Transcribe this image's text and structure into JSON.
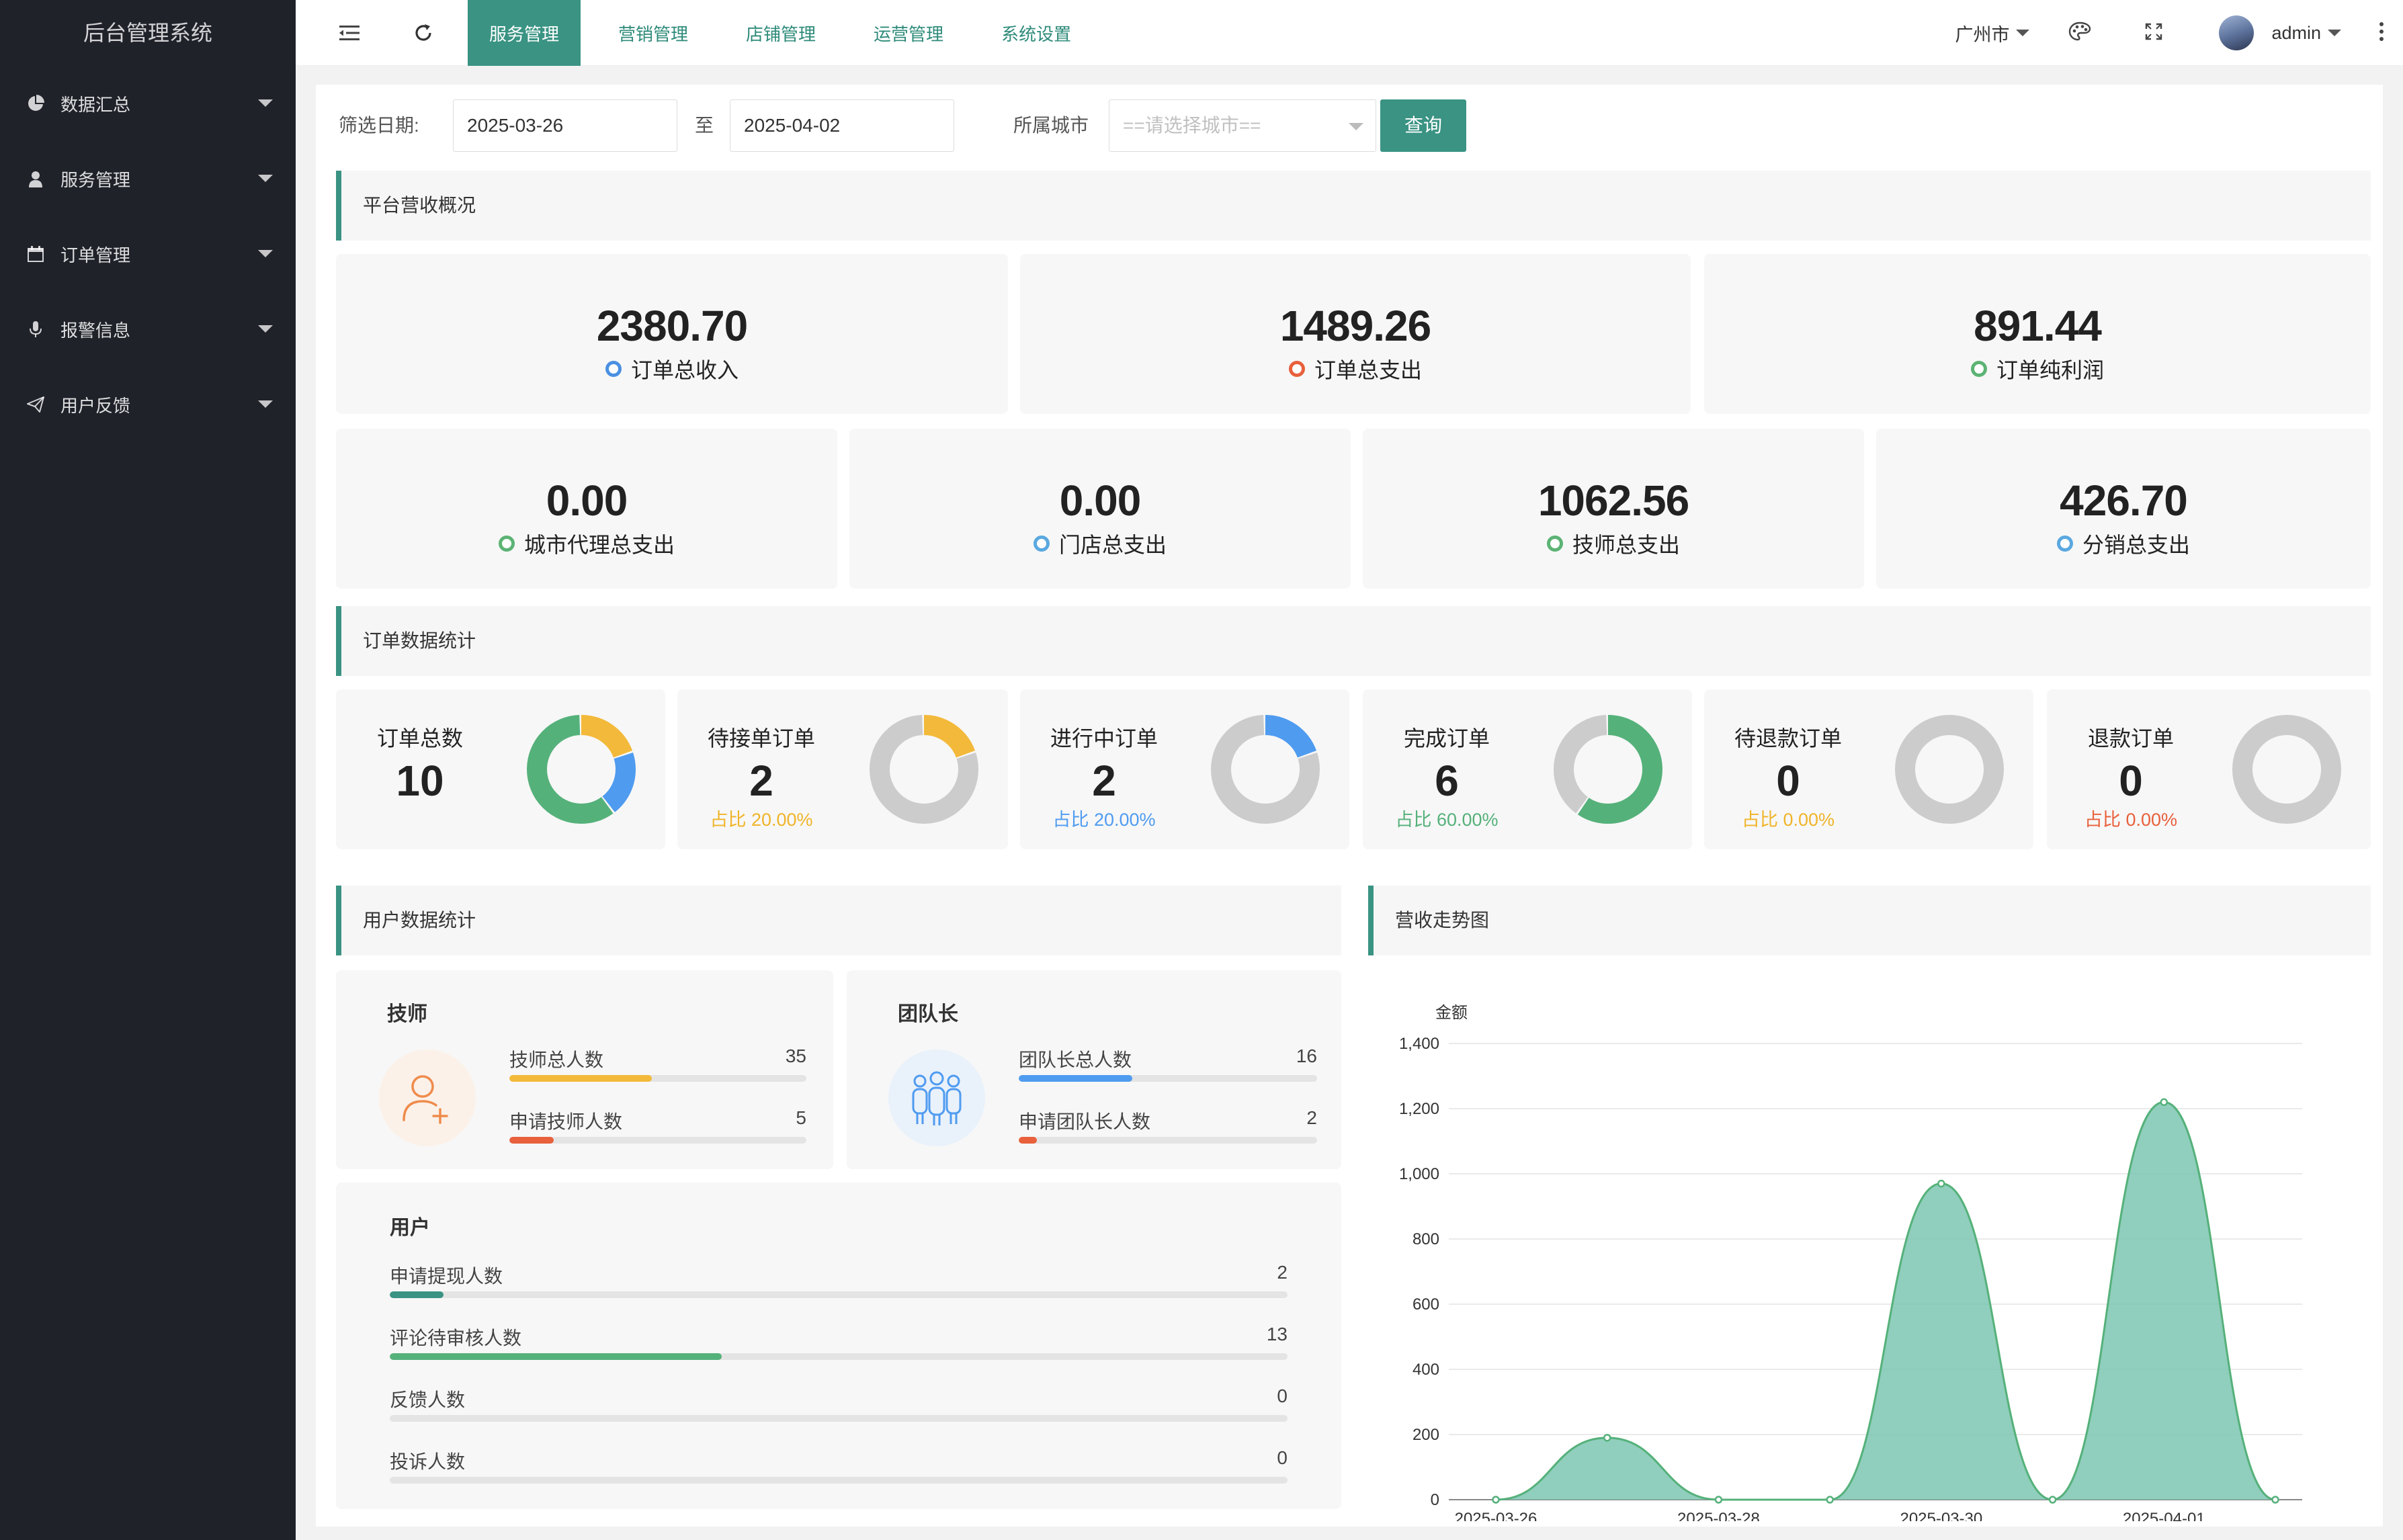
{
  "app": {
    "title": "后台管理系统"
  },
  "sidebar": {
    "items": [
      {
        "label": "数据汇总",
        "icon": "pie-chart-icon"
      },
      {
        "label": "服务管理",
        "icon": "user-icon"
      },
      {
        "label": "订单管理",
        "icon": "calendar-icon"
      },
      {
        "label": "报警信息",
        "icon": "microphone-icon"
      },
      {
        "label": "用户反馈",
        "icon": "paper-plane-icon"
      }
    ]
  },
  "header": {
    "tabs": [
      "服务管理",
      "营销管理",
      "店铺管理",
      "运营管理",
      "系统设置"
    ],
    "active_tab": "服务管理",
    "city": "广州市",
    "user": "admin"
  },
  "filter": {
    "date_label": "筛选日期:",
    "start_date": "2025-03-26",
    "to_label": "至",
    "end_date": "2025-04-02",
    "city_label": "所属城市",
    "city_placeholder": "==请选择城市==",
    "query_button": "查询"
  },
  "revenue": {
    "title": "平台营收概况",
    "top": [
      {
        "value": "2380.70",
        "label": "订单总收入",
        "dot_color": "#4a90e2"
      },
      {
        "value": "1489.26",
        "label": "订单总支出",
        "dot_color": "#e8603c"
      },
      {
        "value": "891.44",
        "label": "订单纯利润",
        "dot_color": "#5cb374"
      }
    ],
    "bottom": [
      {
        "value": "0.00",
        "label": "城市代理总支出",
        "dot_color": "#5cb374"
      },
      {
        "value": "0.00",
        "label": "门店总支出",
        "dot_color": "#5aa8e0"
      },
      {
        "value": "1062.56",
        "label": "技师总支出",
        "dot_color": "#5cb374"
      },
      {
        "value": "426.70",
        "label": "分销总支出",
        "dot_color": "#5aa8e0"
      }
    ]
  },
  "orders": {
    "title": "订单数据统计",
    "cards": [
      {
        "label": "订单总数",
        "count": "10",
        "ratio": "",
        "ratio_color": "#f0b429",
        "segments": [
          {
            "value": 2,
            "color": "#f3b93a"
          },
          {
            "value": 2,
            "color": "#4f9bf0"
          },
          {
            "value": 6,
            "color": "#55b17a"
          }
        ]
      },
      {
        "label": "待接单订单",
        "count": "2",
        "ratio": "占比 20.00%",
        "ratio_color": "#f0b429",
        "segments": [
          {
            "value": 2,
            "color": "#f3b93a"
          },
          {
            "value": 8,
            "color": "#cccccc"
          }
        ]
      },
      {
        "label": "进行中订单",
        "count": "2",
        "ratio": "占比 20.00%",
        "ratio_color": "#4f9bf0",
        "segments": [
          {
            "value": 2,
            "color": "#4f9bf0"
          },
          {
            "value": 8,
            "color": "#cccccc"
          }
        ]
      },
      {
        "label": "完成订单",
        "count": "6",
        "ratio": "占比 60.00%",
        "ratio_color": "#55b17a",
        "segments": [
          {
            "value": 6,
            "color": "#55b17a"
          },
          {
            "value": 4,
            "color": "#cccccc"
          }
        ]
      },
      {
        "label": "待退款订单",
        "count": "0",
        "ratio": "占比 0.00%",
        "ratio_color": "#f0b429",
        "segments": [
          {
            "value": 10,
            "color": "#cccccc"
          }
        ]
      },
      {
        "label": "退款订单",
        "count": "0",
        "ratio": "占比 0.00%",
        "ratio_color": "#e8603c",
        "segments": [
          {
            "value": 10,
            "color": "#cccccc"
          }
        ]
      }
    ]
  },
  "users": {
    "title": "用户数据统计",
    "technician": {
      "title": "技师",
      "rows": [
        {
          "label": "技师总人数",
          "value": "35",
          "ratio": 0.48,
          "color": "#f3b93a"
        },
        {
          "label": "申请技师人数",
          "value": "5",
          "ratio": 0.15,
          "color": "#e8603c"
        }
      ]
    },
    "leader": {
      "title": "团队长",
      "rows": [
        {
          "label": "团队长总人数",
          "value": "16",
          "ratio": 0.38,
          "color": "#4f9bf0"
        },
        {
          "label": "申请团队长人数",
          "value": "2",
          "ratio": 0.06,
          "color": "#e8603c"
        }
      ]
    },
    "user": {
      "title": "用户",
      "rows": [
        {
          "label": "申请提现人数",
          "value": "2",
          "ratio": 0.06,
          "color": "#3a9383"
        },
        {
          "label": "评论待审核人数",
          "value": "13",
          "ratio": 0.37,
          "color": "#55b17a"
        },
        {
          "label": "反馈人数",
          "value": "0",
          "ratio": 0,
          "color": "#55b17a"
        },
        {
          "label": "投诉人数",
          "value": "0",
          "ratio": 0,
          "color": "#55b17a"
        }
      ]
    }
  },
  "trend": {
    "title": "营收走势图"
  },
  "chart_data": {
    "type": "area",
    "ylabel": "金额",
    "x": [
      "2025-03-26",
      "2025-03-27",
      "2025-03-28",
      "2025-03-29",
      "2025-03-30",
      "2025-03-31",
      "2025-04-01",
      "2025-04-02"
    ],
    "x_tick_labels": [
      "2025-03-26",
      "2025-03-28",
      "2025-03-30",
      "2025-04-01"
    ],
    "values": [
      0,
      190,
      0,
      0,
      970,
      0,
      1220,
      0
    ],
    "ylim": [
      0,
      1400
    ],
    "yticks": [
      "0",
      "200",
      "400",
      "600",
      "800",
      "1,000",
      "1,200",
      "1,400"
    ],
    "grid": true,
    "line_color": "#55b17a",
    "fill_color": "#7cc5b2"
  }
}
